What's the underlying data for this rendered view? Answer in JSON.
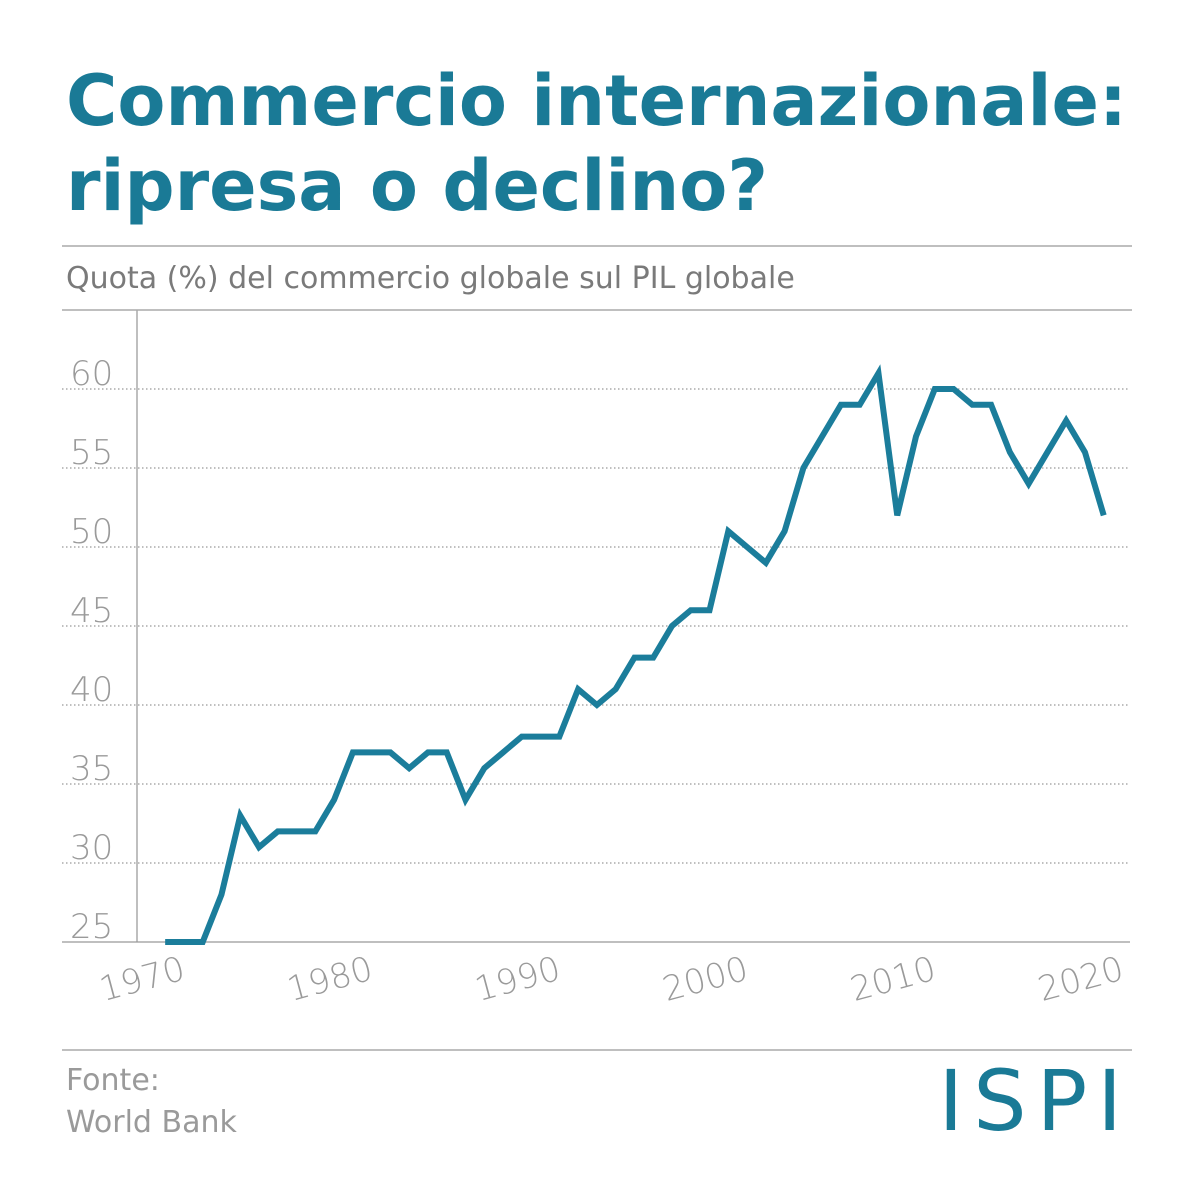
{
  "chart_data": {
    "type": "line",
    "title": [
      "Commercio internazionale:",
      "ripresa o declino?"
    ],
    "subtitle": "Quota (%) del commercio globale sul PIL globale",
    "source": [
      "Fonte:",
      "World Bank"
    ],
    "logo": "ISPI",
    "x": [
      1970,
      1971,
      1972,
      1973,
      1974,
      1975,
      1976,
      1977,
      1978,
      1979,
      1980,
      1981,
      1982,
      1983,
      1984,
      1985,
      1986,
      1987,
      1988,
      1989,
      1990,
      1991,
      1992,
      1993,
      1994,
      1995,
      1996,
      1997,
      1998,
      1999,
      2000,
      2001,
      2002,
      2003,
      2004,
      2005,
      2006,
      2007,
      2008,
      2009,
      2010,
      2011,
      2012,
      2013,
      2014,
      2015,
      2016,
      2017,
      2018,
      2019,
      2020
    ],
    "series": [
      {
        "color": "#1b7d9b",
        "values": [
          25,
          25,
          25,
          28,
          33,
          31,
          32,
          32,
          32,
          34,
          37,
          37,
          37,
          36,
          37,
          37,
          34,
          36,
          37,
          38,
          38,
          38,
          41,
          40,
          41,
          43,
          43,
          45,
          46,
          46,
          51,
          50,
          49,
          51,
          55,
          57,
          59,
          59,
          61,
          52,
          57,
          60,
          60,
          59,
          59,
          56,
          54,
          56,
          58,
          56,
          52
        ]
      }
    ],
    "xlim": [
      1968.5,
      2021.4
    ],
    "xticks": [
      1970,
      1980,
      1990,
      2000,
      2010,
      2020
    ],
    "ylim": [
      25,
      65
    ],
    "yticks": [
      25,
      30,
      35,
      40,
      45,
      50,
      55,
      60
    ],
    "grid": true
  }
}
